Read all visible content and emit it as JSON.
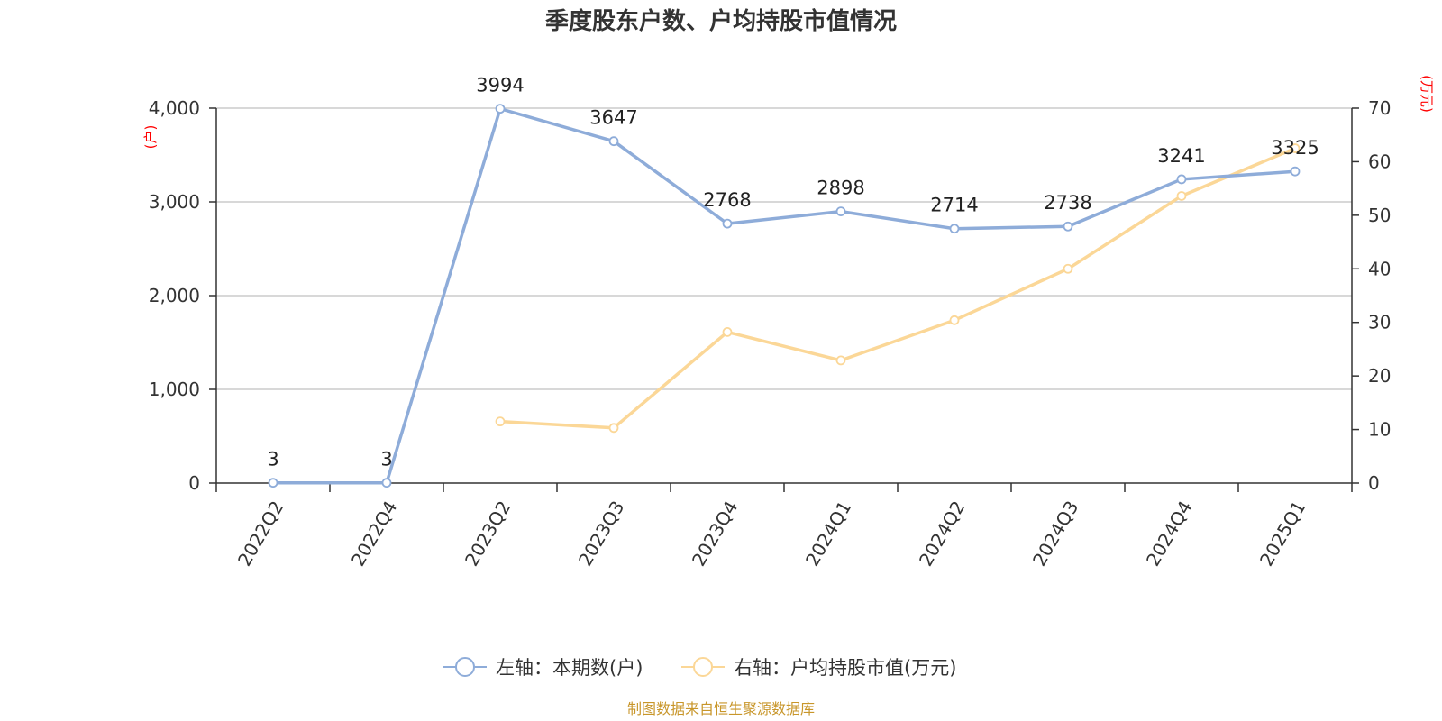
{
  "title": "季度股东户数、户均持股市值情况",
  "source": "制图数据来自恒生聚源数据库",
  "left_axis_unit": "(户)",
  "right_axis_unit": "(万元)",
  "left_ticks": [
    "0",
    "1,000",
    "2,000",
    "3,000",
    "4,000"
  ],
  "right_ticks": [
    "0",
    "10",
    "20",
    "30",
    "40",
    "50",
    "60",
    "70"
  ],
  "legend": {
    "series1": "左轴：本期数(户)",
    "series2": "右轴：户均持股市值(万元)"
  },
  "colors": {
    "series1": "#8eacd9",
    "series2": "#fbd797",
    "unit": "#ff0000",
    "source": "#c8962a"
  },
  "chart_data": {
    "type": "line",
    "title": "季度股东户数、户均持股市值情况",
    "categories": [
      "2022Q2",
      "2022Q4",
      "2023Q2",
      "2023Q3",
      "2023Q4",
      "2024Q1",
      "2024Q2",
      "2024Q3",
      "2024Q4",
      "2025Q1"
    ],
    "left_ylim": [
      0,
      4000
    ],
    "right_ylim": [
      0,
      70
    ],
    "grid": true,
    "legend_position": "bottom",
    "series": [
      {
        "name": "左轴：本期数(户)",
        "axis": "left",
        "values": [
          3,
          3,
          3994,
          3647,
          2768,
          2898,
          2714,
          2738,
          3241,
          3325
        ],
        "labels": [
          "3",
          "3",
          "3994",
          "3647",
          "2768",
          "2898",
          "2714",
          "2738",
          "3241",
          "3325"
        ]
      },
      {
        "name": "右轴：户均持股市值(万元)",
        "axis": "right",
        "values": [
          null,
          null,
          11.5,
          10.3,
          28.2,
          22.9,
          30.4,
          40.0,
          53.6,
          62.5
        ]
      }
    ]
  }
}
